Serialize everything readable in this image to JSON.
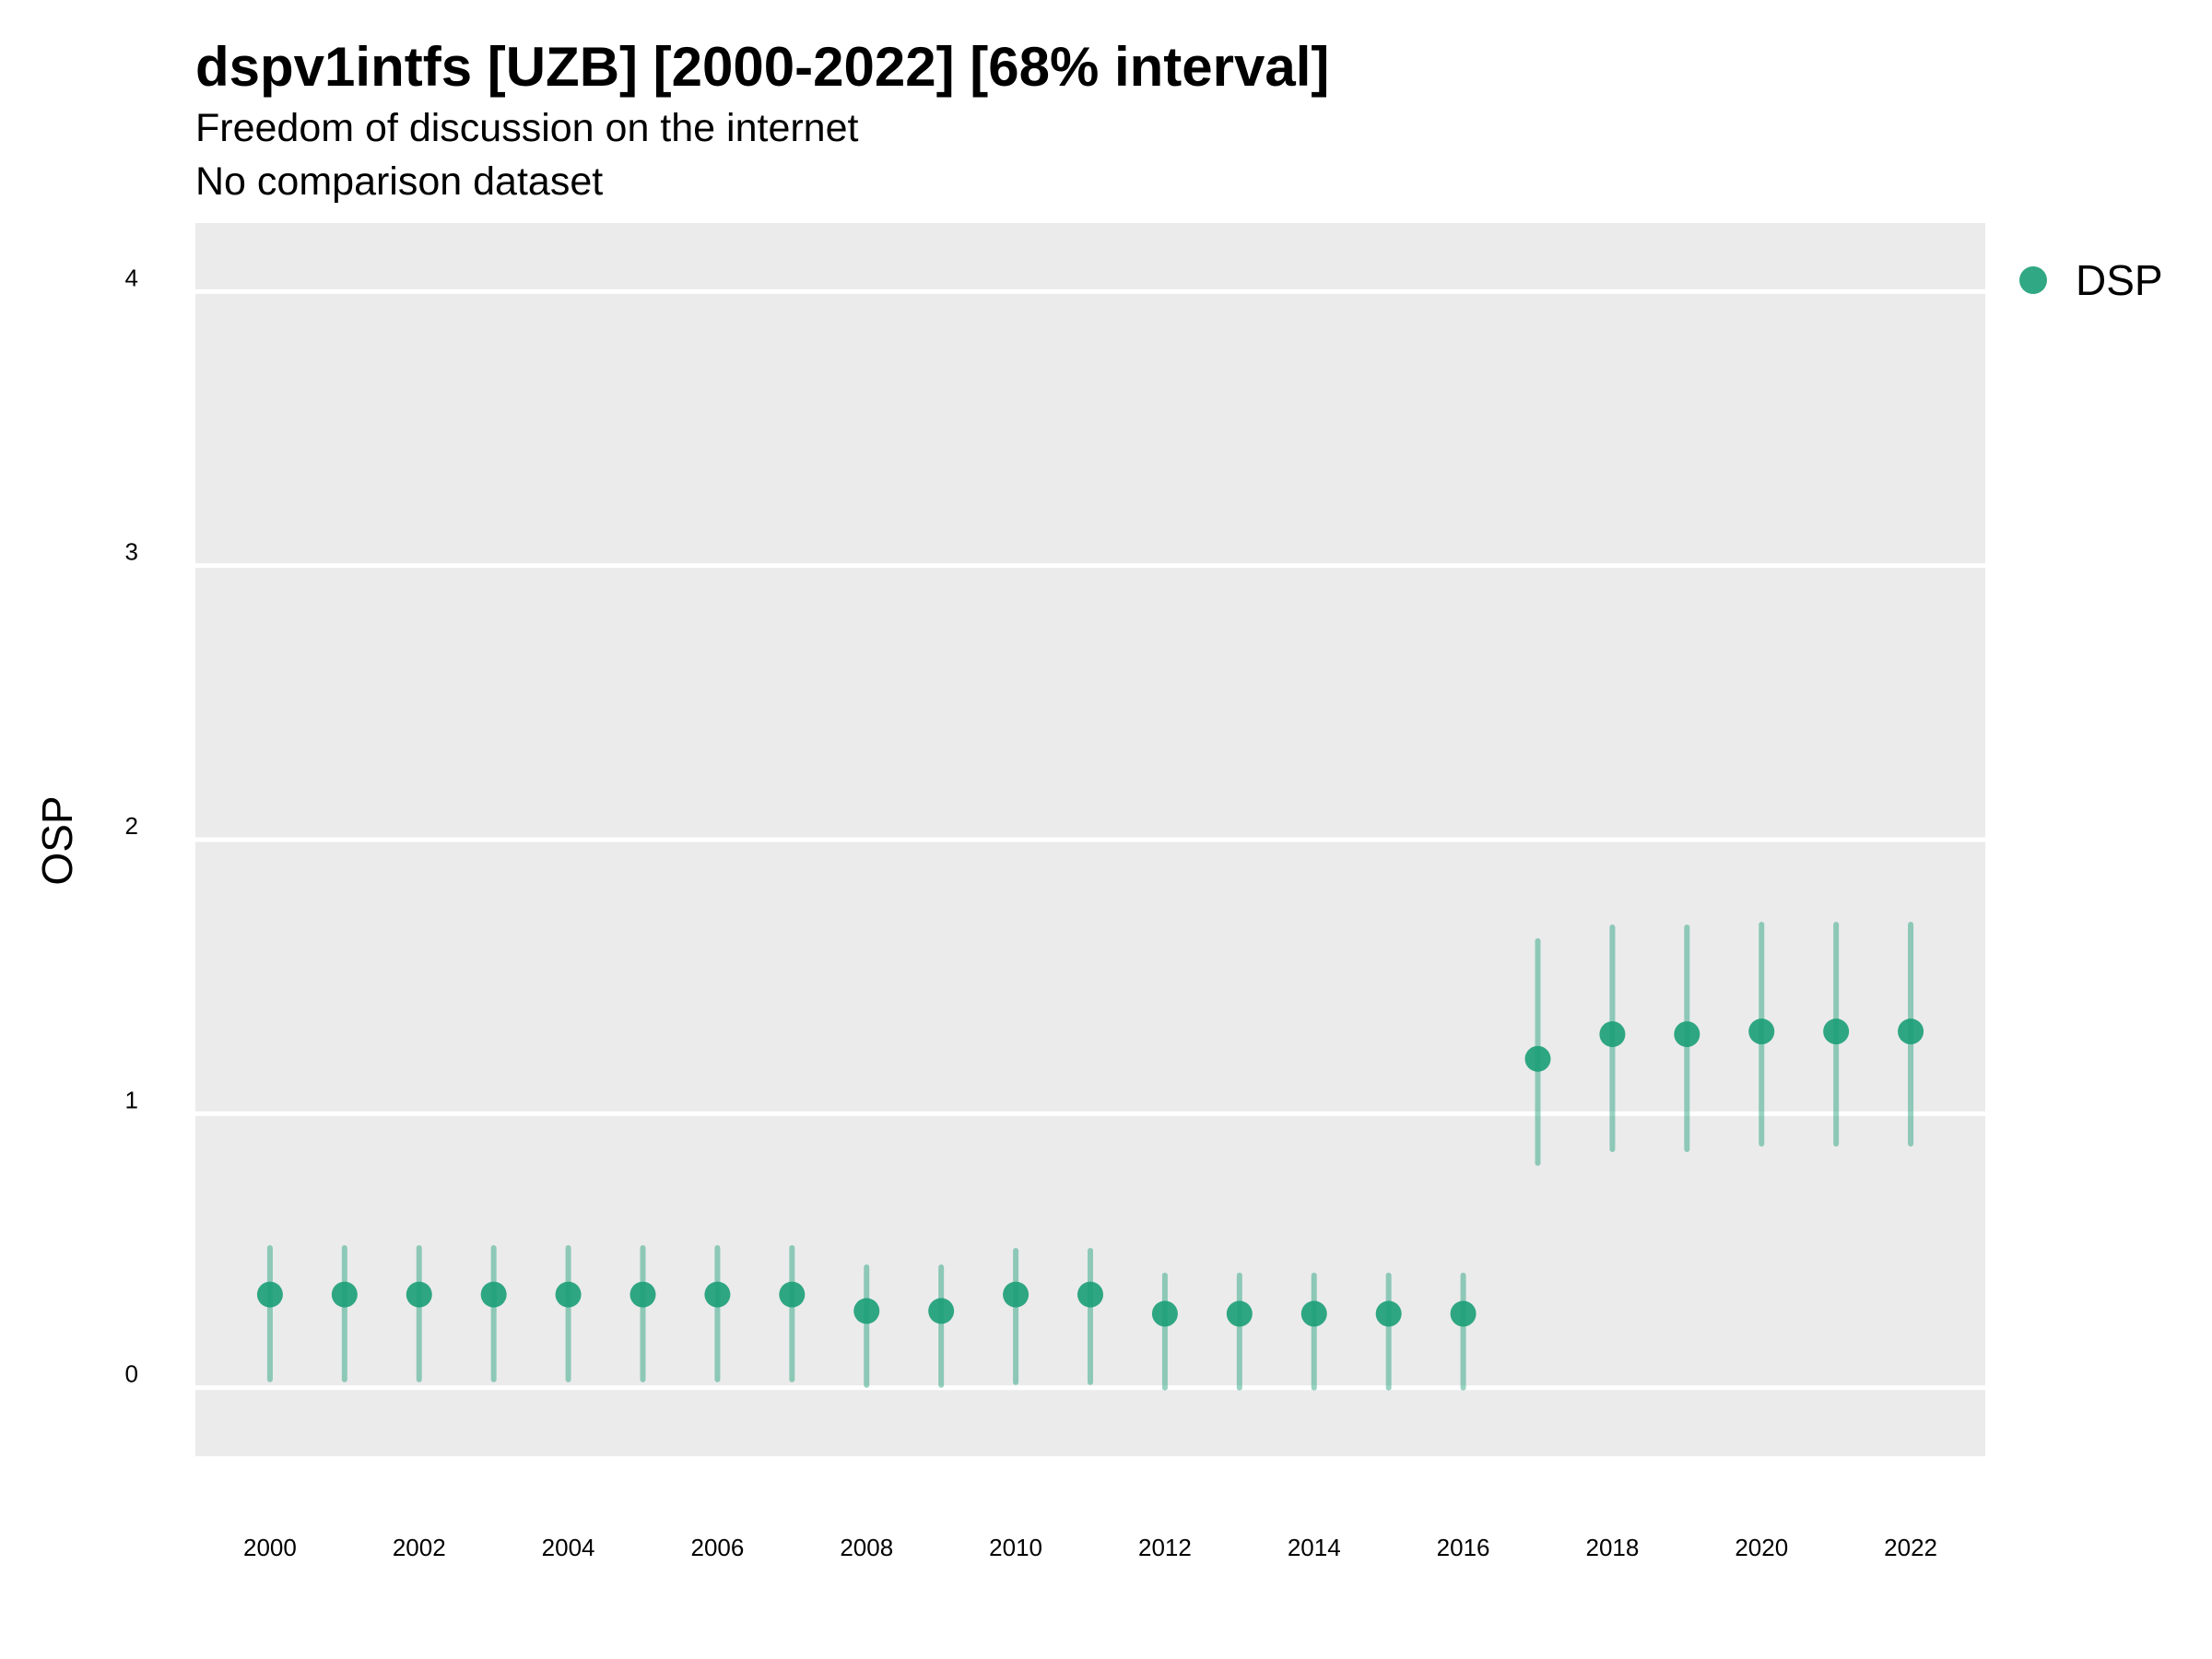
{
  "chart_data": {
    "type": "scatter",
    "title": "dspv1intfs [UZB] [2000-2022] [68% interval]",
    "subtitle": "Freedom of discussion on the internet",
    "caption": "No comparison dataset",
    "xlabel": "",
    "ylabel": "OSP",
    "xlim": [
      1999,
      2023
    ],
    "ylim": [
      -0.25,
      4.25
    ],
    "x_ticks": [
      2000,
      2002,
      2004,
      2006,
      2008,
      2010,
      2012,
      2014,
      2016,
      2018,
      2020,
      2022
    ],
    "y_ticks": [
      0,
      1,
      2,
      3,
      4
    ],
    "grid": true,
    "legend_position": "right",
    "colors": {
      "point": "#1b9e77",
      "interval": "#1b9e77",
      "panel": "#ebebeb",
      "grid": "#ffffff"
    },
    "series": [
      {
        "name": "DSP",
        "x": [
          2000,
          2001,
          2002,
          2003,
          2004,
          2005,
          2006,
          2007,
          2008,
          2009,
          2010,
          2011,
          2012,
          2013,
          2014,
          2015,
          2016,
          2017,
          2018,
          2019,
          2020,
          2021,
          2022
        ],
        "y": [
          0.34,
          0.34,
          0.34,
          0.34,
          0.34,
          0.34,
          0.34,
          0.34,
          0.28,
          0.28,
          0.34,
          0.34,
          0.27,
          0.27,
          0.27,
          0.27,
          0.27,
          1.2,
          1.29,
          1.29,
          1.3,
          1.3,
          1.3
        ],
        "lower": [
          0.03,
          0.03,
          0.03,
          0.03,
          0.03,
          0.03,
          0.03,
          0.03,
          0.01,
          0.01,
          0.02,
          0.02,
          0.0,
          0.0,
          0.0,
          0.0,
          0.0,
          0.82,
          0.87,
          0.87,
          0.89,
          0.89,
          0.89
        ],
        "upper": [
          0.51,
          0.51,
          0.51,
          0.51,
          0.51,
          0.51,
          0.51,
          0.51,
          0.44,
          0.44,
          0.5,
          0.5,
          0.41,
          0.41,
          0.41,
          0.41,
          0.41,
          1.63,
          1.68,
          1.68,
          1.69,
          1.69,
          1.69
        ]
      }
    ]
  }
}
